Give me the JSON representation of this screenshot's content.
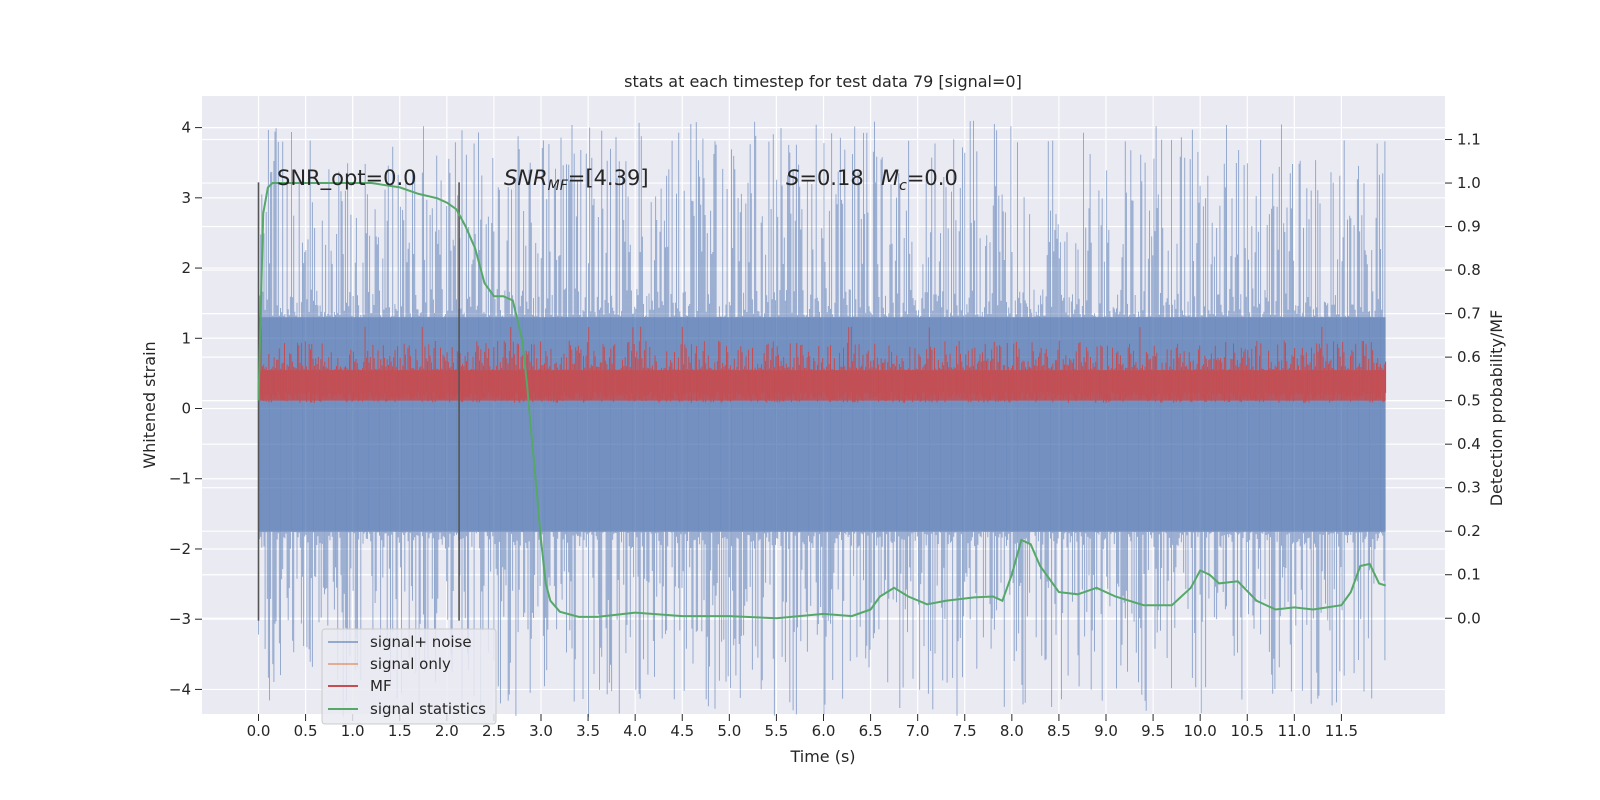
{
  "chart_data": {
    "type": "line",
    "title": "stats at each timestep for test data 79 [signal=0]",
    "xlabel": "Time (s)",
    "ylabel": "Whitened strain",
    "y2label": "Detection probability/MF",
    "xlim": [
      -0.6,
      12.6
    ],
    "ylim": [
      -4.35,
      4.45
    ],
    "y2lim": [
      -0.22,
      1.2
    ],
    "xticks": [
      "0.0",
      "0.5",
      "1.0",
      "1.5",
      "2.0",
      "2.5",
      "3.0",
      "3.5",
      "4.0",
      "4.5",
      "5.0",
      "5.5",
      "6.0",
      "6.5",
      "7.0",
      "7.5",
      "8.0",
      "8.5",
      "9.0",
      "9.5",
      "10.0",
      "10.5",
      "11.0",
      "11.5"
    ],
    "yticks": [
      "4",
      "3",
      "2",
      "1",
      "0",
      "−1",
      "−2",
      "−3",
      "−4"
    ],
    "y2ticks": [
      "1.1",
      "1.0",
      "0.9",
      "0.8",
      "0.7",
      "0.6",
      "0.5",
      "0.4",
      "0.3",
      "0.2",
      "0.1",
      "0.0"
    ],
    "grid": true,
    "legend_position": "lower-left",
    "colors": {
      "background": "#eaeaf2",
      "grid": "#ffffff",
      "signal_noise": "#4c72b0",
      "signal_only": "#dd8452",
      "mf": "#c44e52",
      "statistics": "#55a868",
      "marker": "#555555"
    },
    "annotations": {
      "snr_opt": "SNR_opt=0.0",
      "snr_mf_base": "SNR",
      "snr_mf_sub": "MF",
      "snr_mf_value": "=[4.39]",
      "s_label": "S",
      "s_value": "=0.18",
      "mc_base": "M",
      "mc_sub": "c",
      "mc_value": "=0.0"
    },
    "vertical_markers": [
      0.0,
      2.13
    ],
    "series": [
      {
        "name": "signal+ noise",
        "style": "dense-noise",
        "x_range": [
          0.0,
          11.97
        ],
        "amplitude_core": 1.3,
        "amplitude_peak": 4.1
      },
      {
        "name": "signal only",
        "values": []
      },
      {
        "name": "MF",
        "style": "dense-noise",
        "x_range": [
          0.0,
          11.97
        ],
        "band": [
          0.0,
          0.82
        ]
      },
      {
        "name": "signal statistics",
        "x": [
          0.0,
          0.05,
          0.1,
          0.15,
          0.2,
          0.4,
          0.8,
          1.2,
          1.5,
          1.7,
          1.9,
          2.0,
          2.1,
          2.2,
          2.3,
          2.4,
          2.5,
          2.6,
          2.7,
          2.8,
          2.85,
          2.9,
          2.95,
          3.0,
          3.05,
          3.1,
          3.2,
          3.4,
          3.6,
          4.0,
          4.5,
          5.0,
          5.5,
          6.0,
          6.3,
          6.5,
          6.6,
          6.75,
          6.9,
          7.1,
          7.3,
          7.6,
          7.8,
          7.9,
          8.0,
          8.1,
          8.2,
          8.3,
          8.5,
          8.7,
          8.9,
          9.1,
          9.4,
          9.7,
          9.9,
          10.0,
          10.1,
          10.2,
          10.4,
          10.6,
          10.8,
          11.0,
          11.2,
          11.5,
          11.6,
          11.7,
          11.8,
          11.9,
          11.97
        ],
        "y": [
          0.5,
          0.93,
          0.99,
          1.0,
          1.0,
          1.0,
          1.0,
          1.0,
          0.99,
          0.975,
          0.965,
          0.955,
          0.94,
          0.9,
          0.85,
          0.77,
          0.74,
          0.74,
          0.73,
          0.64,
          0.54,
          0.42,
          0.3,
          0.18,
          0.08,
          0.04,
          0.015,
          0.003,
          0.003,
          0.013,
          0.005,
          0.005,
          0.0,
          0.01,
          0.005,
          0.02,
          0.05,
          0.07,
          0.05,
          0.032,
          0.04,
          0.048,
          0.05,
          0.04,
          0.1,
          0.18,
          0.17,
          0.12,
          0.06,
          0.055,
          0.07,
          0.05,
          0.03,
          0.03,
          0.07,
          0.11,
          0.1,
          0.08,
          0.085,
          0.04,
          0.02,
          0.025,
          0.02,
          0.03,
          0.06,
          0.12,
          0.125,
          0.08,
          0.075
        ]
      }
    ]
  }
}
